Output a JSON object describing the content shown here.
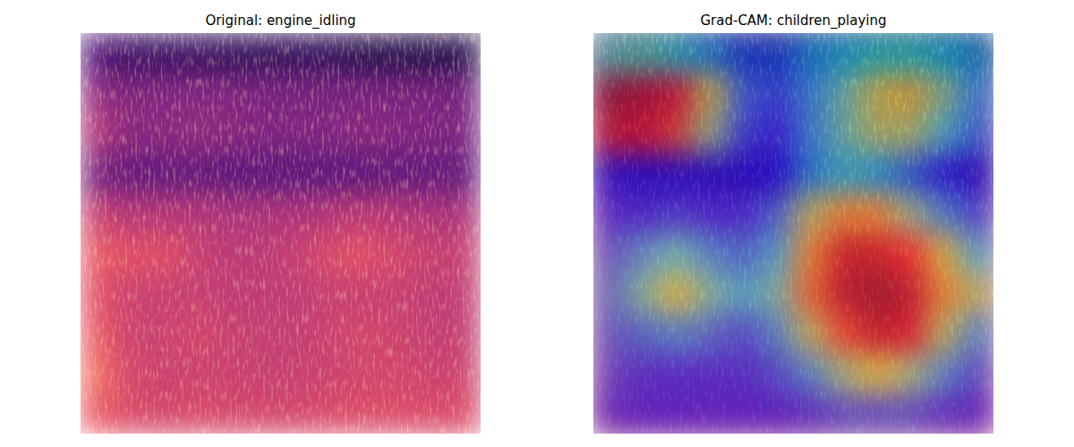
{
  "chart_data": [
    {
      "type": "heatmap",
      "title": "Original: engine_idling",
      "tick_labels": false,
      "clim": [
        0,
        1
      ],
      "cells": [
        [
          0.25,
          0.2,
          0.2,
          0.2,
          0.18,
          0.18,
          0.18,
          0.18,
          0.15,
          0.15,
          0.15,
          0.15
        ],
        [
          0.42,
          0.38,
          0.38,
          0.38,
          0.38,
          0.36,
          0.36,
          0.36,
          0.36,
          0.36,
          0.36,
          0.35
        ],
        [
          0.5,
          0.4,
          0.4,
          0.42,
          0.4,
          0.38,
          0.38,
          0.38,
          0.4,
          0.38,
          0.38,
          0.36
        ],
        [
          0.35,
          0.3,
          0.3,
          0.3,
          0.28,
          0.28,
          0.28,
          0.28,
          0.28,
          0.3,
          0.3,
          0.3
        ],
        [
          0.55,
          0.5,
          0.5,
          0.5,
          0.48,
          0.48,
          0.48,
          0.5,
          0.52,
          0.5,
          0.48,
          0.48
        ],
        [
          0.65,
          0.62,
          0.62,
          0.55,
          0.52,
          0.52,
          0.55,
          0.6,
          0.62,
          0.58,
          0.55,
          0.55
        ],
        [
          0.62,
          0.56,
          0.55,
          0.55,
          0.53,
          0.53,
          0.53,
          0.55,
          0.55,
          0.55,
          0.53,
          0.53
        ],
        [
          0.65,
          0.56,
          0.56,
          0.58,
          0.55,
          0.54,
          0.54,
          0.56,
          0.58,
          0.56,
          0.54,
          0.54
        ],
        [
          0.7,
          0.58,
          0.56,
          0.56,
          0.56,
          0.55,
          0.55,
          0.56,
          0.58,
          0.58,
          0.56,
          0.56
        ],
        [
          0.65,
          0.6,
          0.58,
          0.6,
          0.58,
          0.58,
          0.58,
          0.6,
          0.6,
          0.6,
          0.6,
          0.6
        ]
      ]
    },
    {
      "type": "overlay",
      "title": "Grad-CAM: children_playing",
      "tick_labels": false,
      "clim": [
        0,
        1
      ],
      "cells": [
        [
          0.45,
          0.45,
          0.4,
          0.3,
          0.2,
          0.2,
          0.3,
          0.35,
          0.4,
          0.4,
          0.35,
          0.3
        ],
        [
          1.0,
          0.95,
          0.9,
          0.6,
          0.25,
          0.2,
          0.3,
          0.45,
          0.6,
          0.65,
          0.5,
          0.3
        ],
        [
          0.95,
          0.9,
          0.8,
          0.5,
          0.2,
          0.15,
          0.3,
          0.45,
          0.55,
          0.55,
          0.4,
          0.25
        ],
        [
          0.1,
          0.1,
          0.1,
          0.1,
          0.1,
          0.12,
          0.3,
          0.4,
          0.35,
          0.25,
          0.15,
          0.1
        ],
        [
          0.15,
          0.15,
          0.18,
          0.15,
          0.15,
          0.25,
          0.55,
          0.7,
          0.7,
          0.5,
          0.3,
          0.2
        ],
        [
          0.2,
          0.3,
          0.4,
          0.3,
          0.25,
          0.35,
          0.7,
          0.95,
          0.95,
          0.85,
          0.6,
          0.35
        ],
        [
          0.25,
          0.45,
          0.6,
          0.45,
          0.35,
          0.45,
          0.75,
          0.95,
          1.0,
          0.95,
          0.7,
          0.55
        ],
        [
          0.2,
          0.25,
          0.3,
          0.25,
          0.2,
          0.3,
          0.55,
          0.8,
          0.95,
          0.9,
          0.55,
          0.3
        ],
        [
          0.15,
          0.15,
          0.15,
          0.15,
          0.15,
          0.2,
          0.3,
          0.5,
          0.6,
          0.5,
          0.3,
          0.2
        ],
        [
          0.12,
          0.12,
          0.12,
          0.12,
          0.12,
          0.12,
          0.15,
          0.2,
          0.2,
          0.2,
          0.15,
          0.12
        ]
      ]
    }
  ]
}
